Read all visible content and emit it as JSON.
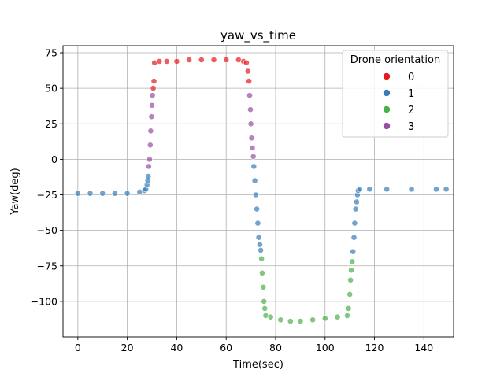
{
  "chart_data": {
    "type": "scatter",
    "title": "yaw_vs_time",
    "xlabel": "Time(sec)",
    "ylabel": "Yaw(deg)",
    "xlim": [
      -6,
      152
    ],
    "ylim": [
      -125,
      80
    ],
    "xticks": [
      0,
      20,
      40,
      60,
      80,
      100,
      120,
      140
    ],
    "yticks": [
      75,
      50,
      25,
      0,
      -25,
      -50,
      -75,
      -100
    ],
    "ytick_labels": [
      "75",
      "50",
      "25",
      "0",
      "−25",
      "−50",
      "−75",
      "−100"
    ],
    "grid": true,
    "legend": {
      "title": "Drone orientation",
      "placement": "top-right",
      "entries": [
        {
          "label": "0",
          "color": "#e41a1c"
        },
        {
          "label": "1",
          "color": "#377eb8"
        },
        {
          "label": "2",
          "color": "#4daf4a"
        },
        {
          "label": "3",
          "color": "#984ea3"
        }
      ]
    },
    "series": [
      {
        "name": "1",
        "color": "#377eb8",
        "x": [
          0,
          5,
          10,
          15,
          20,
          25,
          27,
          27.5,
          28,
          28.3,
          28.5
        ],
        "y": [
          -24,
          -24,
          -24,
          -24,
          -24,
          -23,
          -22,
          -21,
          -18,
          -15,
          -12
        ]
      },
      {
        "name": "3",
        "color": "#984ea3",
        "x": [
          28.7,
          29,
          29.3,
          29.5,
          29.8,
          30,
          30.2
        ],
        "y": [
          -5,
          0,
          10,
          20,
          30,
          38,
          45
        ]
      },
      {
        "name": "0",
        "color": "#e41a1c",
        "x": [
          30.5,
          30.8,
          31,
          33,
          36,
          40,
          45,
          50,
          55,
          60,
          65,
          67,
          68.2,
          68.8,
          69.2
        ],
        "y": [
          50,
          55,
          68,
          69,
          69,
          69,
          70,
          70,
          70,
          70,
          70,
          69,
          68,
          62,
          55
        ]
      },
      {
        "name": "3",
        "color": "#984ea3",
        "x": [
          69.5,
          69.8,
          70,
          70.3,
          70.6,
          71
        ],
        "y": [
          45,
          35,
          25,
          15,
          8,
          2
        ]
      },
      {
        "name": "1",
        "color": "#377eb8",
        "x": [
          71.2,
          71.6,
          72,
          72.4,
          72.8,
          73.2,
          73.6,
          74
        ],
        "y": [
          -5,
          -15,
          -25,
          -35,
          -45,
          -55,
          -60,
          -64
        ]
      },
      {
        "name": "2",
        "color": "#4daf4a",
        "x": [
          74.3,
          74.6,
          75,
          75.3,
          75.6,
          76,
          78,
          82,
          86,
          90,
          95,
          100,
          105,
          109,
          109.5,
          110,
          110.3,
          110.6,
          111
        ],
        "y": [
          -70,
          -80,
          -90,
          -100,
          -105,
          -110,
          -111,
          -113,
          -114,
          -114,
          -113,
          -112,
          -111,
          -110,
          -105,
          -95,
          -85,
          -78,
          -72
        ]
      },
      {
        "name": "1",
        "color": "#377eb8",
        "x": [
          111.3,
          111.7,
          112,
          112.4,
          112.8,
          113.1,
          113.4,
          114,
          118,
          125,
          135,
          145,
          149
        ],
        "y": [
          -65,
          -55,
          -45,
          -35,
          -30,
          -25,
          -22,
          -21,
          -21,
          -21,
          -21,
          -21,
          -21
        ]
      }
    ]
  }
}
